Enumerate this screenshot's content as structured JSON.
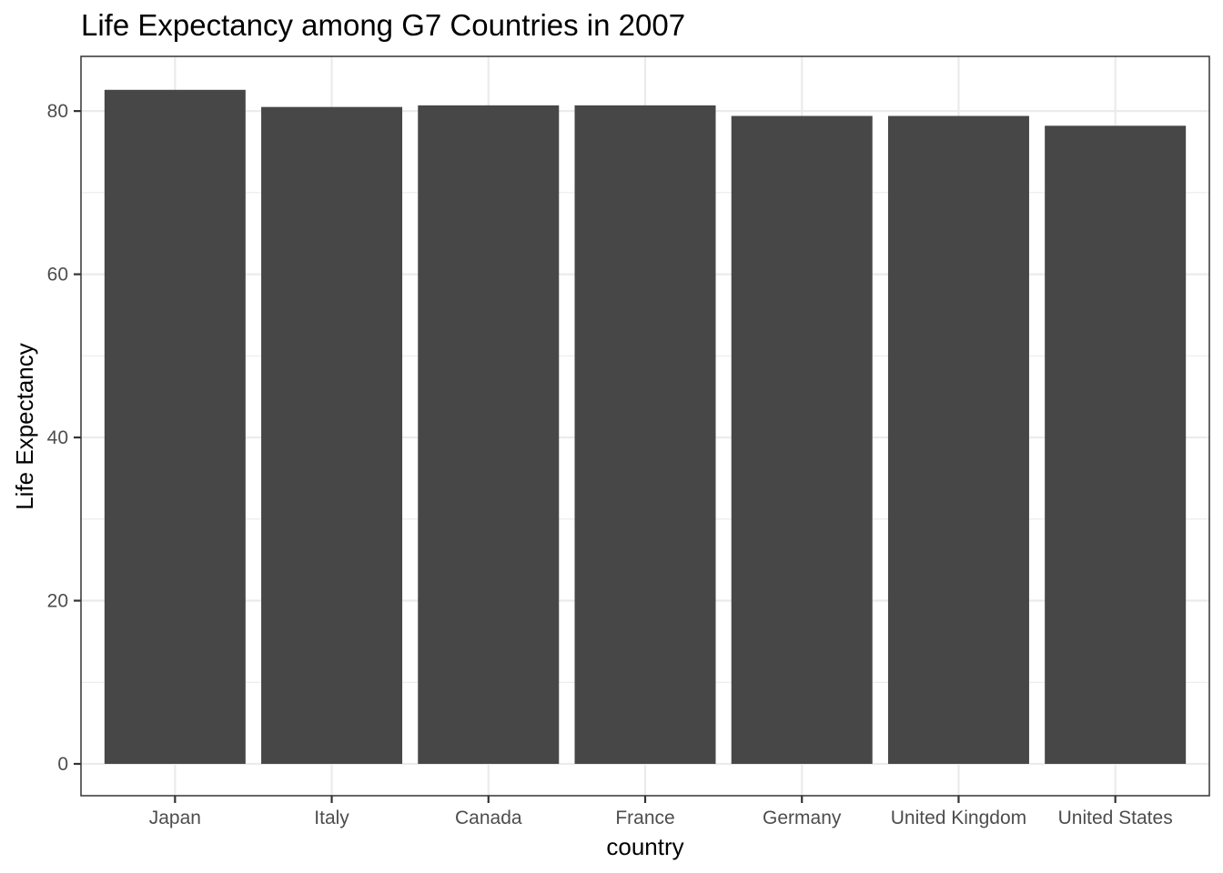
{
  "chart_data": {
    "type": "bar",
    "title": "Life Expectancy among G7 Countries in 2007",
    "xlabel": "country",
    "ylabel": "Life Expectancy",
    "categories": [
      "Japan",
      "Italy",
      "Canada",
      "France",
      "Germany",
      "United Kingdom",
      "United States"
    ],
    "values": [
      82.6,
      80.5,
      80.7,
      80.7,
      79.4,
      79.4,
      78.2
    ],
    "ylim": [
      -3.9,
      86.7
    ],
    "y_ticks": [
      0,
      20,
      40,
      60,
      80
    ],
    "y_tick_labels": [
      "0",
      "20",
      "40",
      "60",
      "80"
    ],
    "grid": true,
    "bar_color": "#474747",
    "grid_color": "#ebebeb"
  }
}
